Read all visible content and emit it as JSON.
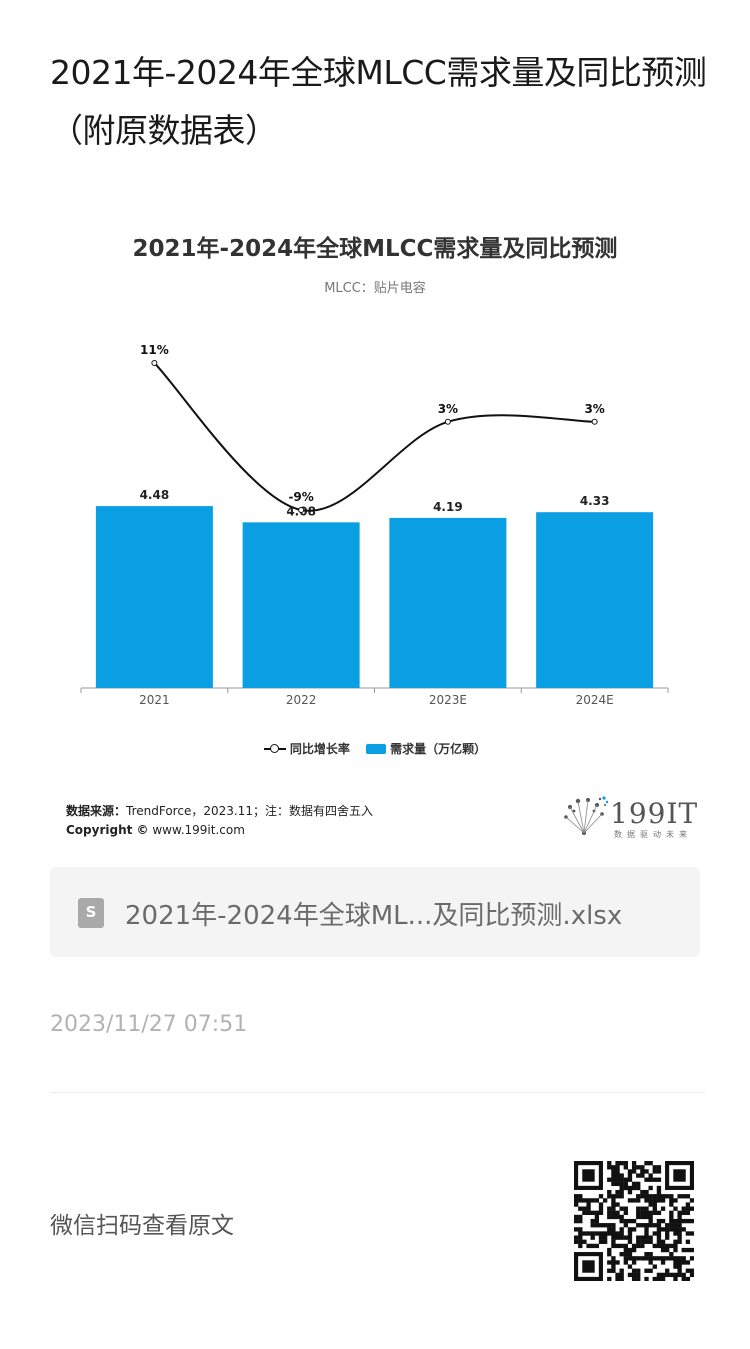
{
  "article": {
    "title": "2021年-2024年全球MLCC需求量及同比预测（附原数据表）"
  },
  "chart": {
    "title": "2021年-2024年全球MLCC需求量及同比预测",
    "subtitle": "MLCC：贴片电容",
    "legend_line": "同比增长率",
    "legend_bar": "需求量（万亿颗）",
    "source_label": "数据来源：",
    "source_text": "TrendForce，2023.11；注：数据有四舍五入",
    "copyright_label": "Copyright ©",
    "copyright_text": " www.199it.com",
    "logo_text": "199IT",
    "logo_tagline": "数据驱动未来"
  },
  "chart_data": {
    "type": "bar",
    "categories": [
      "2021",
      "2022",
      "2023E",
      "2024E"
    ],
    "series": [
      {
        "name": "需求量（万亿颗）",
        "type": "bar",
        "values": [
          4.48,
          4.08,
          4.19,
          4.33
        ],
        "labels": [
          "4.48",
          "4.08",
          "4.19",
          "4.33"
        ],
        "color": "#0a9ee3"
      },
      {
        "name": "同比增长率",
        "type": "line",
        "values": [
          11,
          -9,
          3,
          3
        ],
        "labels": [
          "11%",
          "-9%",
          "3%",
          "3%"
        ],
        "color": "#111111"
      }
    ]
  },
  "attachment": {
    "icon": "spreadsheet-file-icon",
    "icon_letter": "S",
    "filename": "2021年-2024年全球ML...及同比预测.xlsx"
  },
  "timestamp": "2023/11/27 07:51",
  "footer": {
    "scan_text": "微信扫码查看原文",
    "qr_icon": "qr-code-icon"
  }
}
